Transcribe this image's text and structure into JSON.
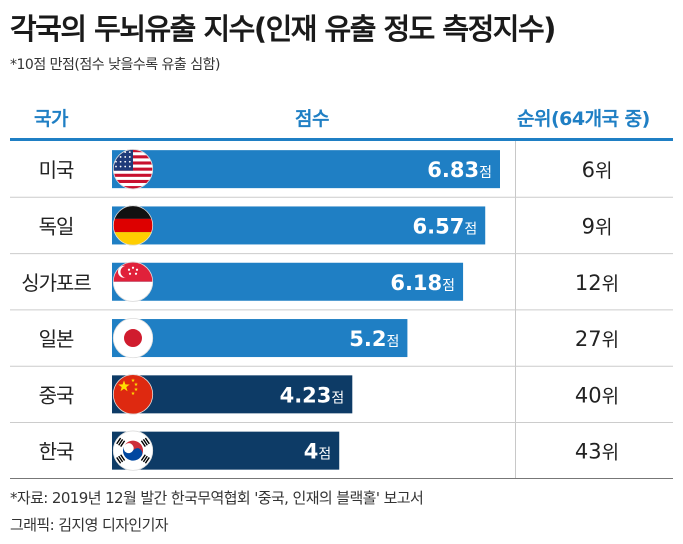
{
  "title": "각국의 두뇌유출 지수(인재 유출 정도 측정지수)",
  "subtitle": "*10점 만점(점수 낮을수록 유출 심함)",
  "headers": {
    "country": "국가",
    "score": "점수",
    "rank": "순위(64개국 중)"
  },
  "footer": {
    "source": "*자료: 2019년 12월 발간 한국무역협회 '중국, 인재의 블랙홀' 보고서",
    "credit": "그래픽: 김지영 디자인기자"
  },
  "colors": {
    "accent": "#1f7fc4",
    "bar_blue": "#1f7fc4",
    "bar_navy": "#0d3b66",
    "row_line": "#cccccc"
  },
  "chart_data": {
    "type": "bar",
    "orientation": "horizontal",
    "title": "각국의 두뇌유출 지수(인재 유출 정도 측정지수)",
    "xlabel": "점수",
    "ylabel": "국가",
    "xlim": [
      0,
      10
    ],
    "value_suffix": "점",
    "rank_suffix": "위",
    "rows": [
      {
        "country": "미국",
        "value": 6.83,
        "label": "6.83",
        "rank": "6",
        "flag": "us-flag",
        "highlight": false
      },
      {
        "country": "독일",
        "value": 6.57,
        "label": "6.57",
        "rank": "9",
        "flag": "germany-flag",
        "highlight": false
      },
      {
        "country": "싱가포르",
        "value": 6.18,
        "label": "6.18",
        "rank": "12",
        "flag": "singapore-flag",
        "highlight": false
      },
      {
        "country": "일본",
        "value": 5.2,
        "label": "5.2",
        "rank": "27",
        "flag": "japan-flag",
        "highlight": false
      },
      {
        "country": "중국",
        "value": 4.23,
        "label": "4.23",
        "rank": "40",
        "flag": "china-flag",
        "highlight": true
      },
      {
        "country": "한국",
        "value": 4,
        "label": "4",
        "rank": "43",
        "flag": "korea-flag",
        "highlight": true
      }
    ]
  }
}
